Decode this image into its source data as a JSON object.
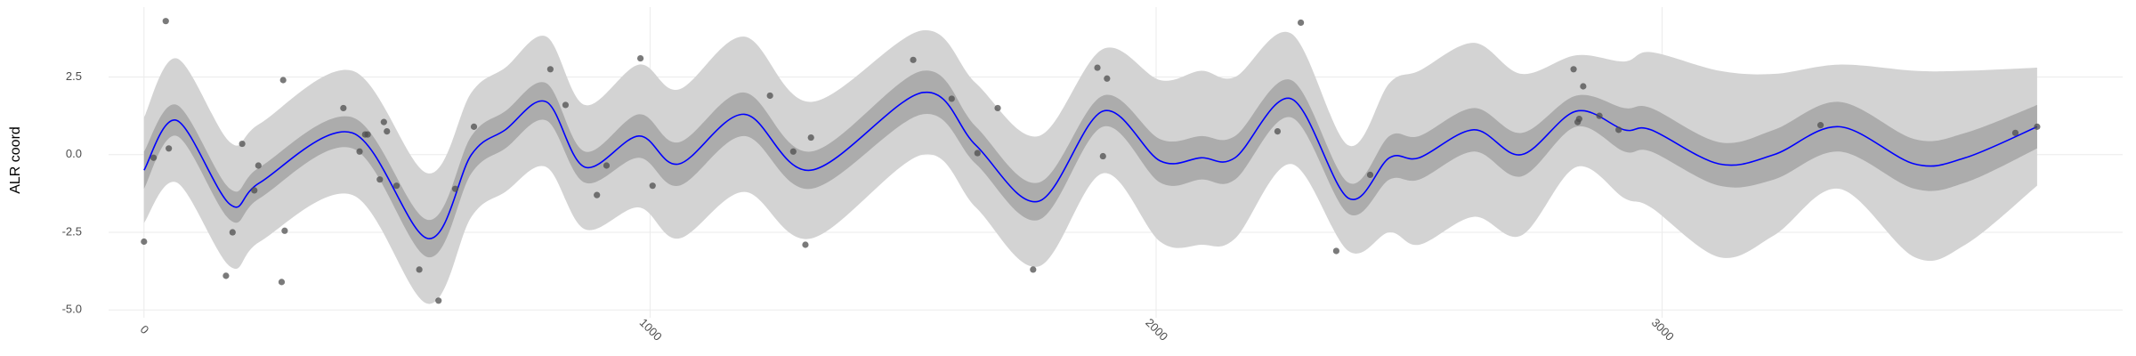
{
  "chart_data": {
    "type": "line",
    "y_label": "ALR coord",
    "grid": true,
    "xlim": [
      -70,
      3910
    ],
    "ylim": [
      -5.25,
      4.75
    ],
    "xticks": [
      0,
      1000,
      2000,
      3000
    ],
    "yticks": [
      {
        "value": -5,
        "label": "-5.0"
      },
      -2.5,
      {
        "value": 0,
        "label": "0.0"
      },
      2.5
    ],
    "x": [
      0,
      65,
      170,
      229,
      412,
      561,
      647,
      714,
      795,
      871,
      978,
      1057,
      1186,
      1318,
      1539,
      1644,
      1768,
      1895,
      2008,
      2089,
      2156,
      2267,
      2380,
      2461,
      2520,
      2628,
      2722,
      2830,
      2925,
      2978,
      3113,
      3221,
      3350,
      3499,
      3599,
      3741
    ],
    "bands": [
      {
        "color": "#d3d3d3",
        "lower": [
          -2.2,
          -0.9,
          -3.6,
          -2.8,
          -1.3,
          -4.8,
          -2.0,
          -1.2,
          -0.4,
          -2.4,
          -1.7,
          -2.7,
          -1.2,
          -2.7,
          0.0,
          -1.7,
          -3.6,
          -0.6,
          -2.8,
          -2.9,
          -2.7,
          -0.3,
          -3.1,
          -2.5,
          -2.9,
          -2.0,
          -2.6,
          -0.4,
          -1.4,
          -1.7,
          -3.3,
          -2.6,
          -1.1,
          -3.3,
          -2.9,
          -1.0
        ],
        "upper": [
          1.2,
          3.1,
          0.4,
          1.0,
          2.7,
          -0.6,
          2.0,
          2.8,
          3.8,
          1.6,
          2.9,
          2.1,
          3.8,
          1.7,
          4.0,
          2.3,
          0.6,
          3.4,
          2.4,
          2.7,
          2.5,
          3.9,
          0.3,
          2.3,
          2.7,
          3.6,
          2.6,
          3.2,
          3.0,
          3.3,
          2.7,
          2.6,
          2.9,
          2.7,
          2.7,
          2.8
        ]
      },
      {
        "color": "#acacac",
        "lower": [
          -1.1,
          0.6,
          -2.1,
          -1.4,
          0.2,
          -3.3,
          -0.6,
          0.2,
          1.1,
          -0.9,
          -0.1,
          -1.0,
          0.6,
          -1.1,
          1.3,
          -0.3,
          -2.1,
          0.9,
          -0.9,
          -0.8,
          -0.8,
          1.2,
          -1.9,
          -0.8,
          -0.8,
          0.1,
          -0.7,
          0.9,
          0.1,
          0.1,
          -1.0,
          -0.8,
          0.1,
          -1.1,
          -0.9,
          0.2
        ],
        "upper": [
          0.1,
          1.6,
          -1.1,
          -0.4,
          1.2,
          -2.1,
          0.6,
          1.4,
          2.3,
          0.1,
          1.3,
          0.4,
          2.0,
          0.1,
          2.7,
          0.9,
          -0.9,
          1.9,
          0.5,
          0.6,
          0.6,
          2.4,
          -0.9,
          0.6,
          0.6,
          1.5,
          0.7,
          1.9,
          1.5,
          1.5,
          0.4,
          0.8,
          1.7,
          0.5,
          0.7,
          1.6
        ]
      }
    ],
    "series": [
      {
        "color": "#0000ff",
        "values": [
          -0.5,
          1.1,
          -1.6,
          -0.9,
          0.7,
          -2.7,
          0.0,
          0.8,
          1.7,
          -0.4,
          0.6,
          -0.3,
          1.3,
          -0.5,
          2.0,
          0.3,
          -1.5,
          1.4,
          -0.2,
          -0.1,
          -0.1,
          1.8,
          -1.4,
          -0.1,
          -0.1,
          0.8,
          0.0,
          1.4,
          0.8,
          0.8,
          -0.3,
          0.0,
          0.9,
          -0.3,
          -0.1,
          0.9
        ]
      }
    ],
    "points": {
      "color": "#4d4d4d",
      "x": [
        0,
        19,
        43,
        49,
        162,
        175,
        194,
        218,
        226,
        272,
        275,
        278,
        394,
        426,
        437,
        442,
        466,
        474,
        480,
        499,
        544,
        582,
        615,
        652,
        803,
        833,
        895,
        914,
        981,
        1005,
        1237,
        1283,
        1307,
        1318,
        1520,
        1596,
        1647,
        1687,
        1757,
        1884,
        1895,
        1903,
        2240,
        2286,
        2356,
        2423,
        2825,
        2833,
        2836,
        2844,
        2876,
        2914,
        3313,
        3698,
        3741
      ],
      "y": [
        -2.8,
        -0.1,
        4.3,
        0.2,
        -3.9,
        -2.5,
        0.35,
        -1.15,
        -0.35,
        -4.1,
        2.4,
        -2.45,
        1.5,
        0.1,
        0.65,
        0.65,
        -0.8,
        1.05,
        0.75,
        -1.0,
        -3.7,
        -4.7,
        -1.1,
        0.9,
        2.75,
        1.6,
        -1.3,
        -0.35,
        3.1,
        -1.0,
        1.9,
        0.1,
        -2.9,
        0.55,
        3.05,
        1.8,
        0.05,
        1.5,
        -3.7,
        2.8,
        -0.05,
        2.45,
        0.75,
        4.25,
        -3.1,
        -0.65,
        2.75,
        1.05,
        1.15,
        2.2,
        1.25,
        0.8,
        0.95,
        0.7,
        0.9
      ]
    }
  }
}
